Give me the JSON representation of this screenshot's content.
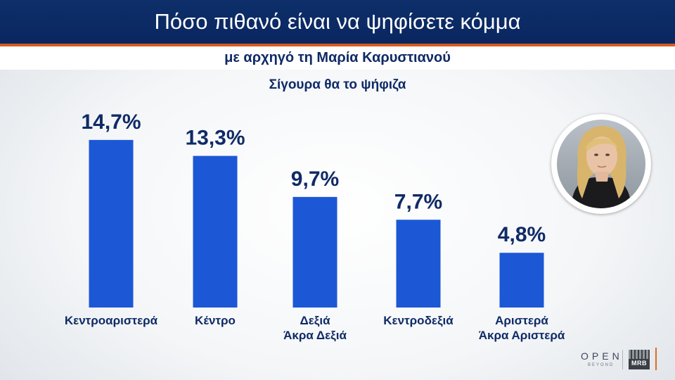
{
  "header": {
    "title": "Πόσο πιθανό είναι να ψηφίσετε κόμμα",
    "subtitle": "με αρχηγό τη Μαρία Καρυστιανού"
  },
  "chart_data": {
    "type": "bar",
    "subtitle": "Σίγουρα θα το ψήφιζα",
    "categories": [
      "Κεντροαριστερά",
      "Κέντρο",
      "Δεξιά\nΆκρα Δεξιά",
      "Κεντροδεξιά",
      "Αριστερά\nΆκρα Αριστερά"
    ],
    "values": [
      14.7,
      13.3,
      9.7,
      7.7,
      4.8
    ],
    "data_labels": [
      "14,7%",
      "13,3%",
      "9,7%",
      "7,7%",
      "4,8%"
    ],
    "bar_color": "#1c57d6",
    "label_color": "#0f2a66",
    "grid": false
  },
  "logos": {
    "open": "OPEN",
    "beyond": "BEYOND",
    "mrb": "MRB"
  },
  "colors": {
    "header_bg": "#0e2f6a",
    "accent": "#d85a1e"
  }
}
